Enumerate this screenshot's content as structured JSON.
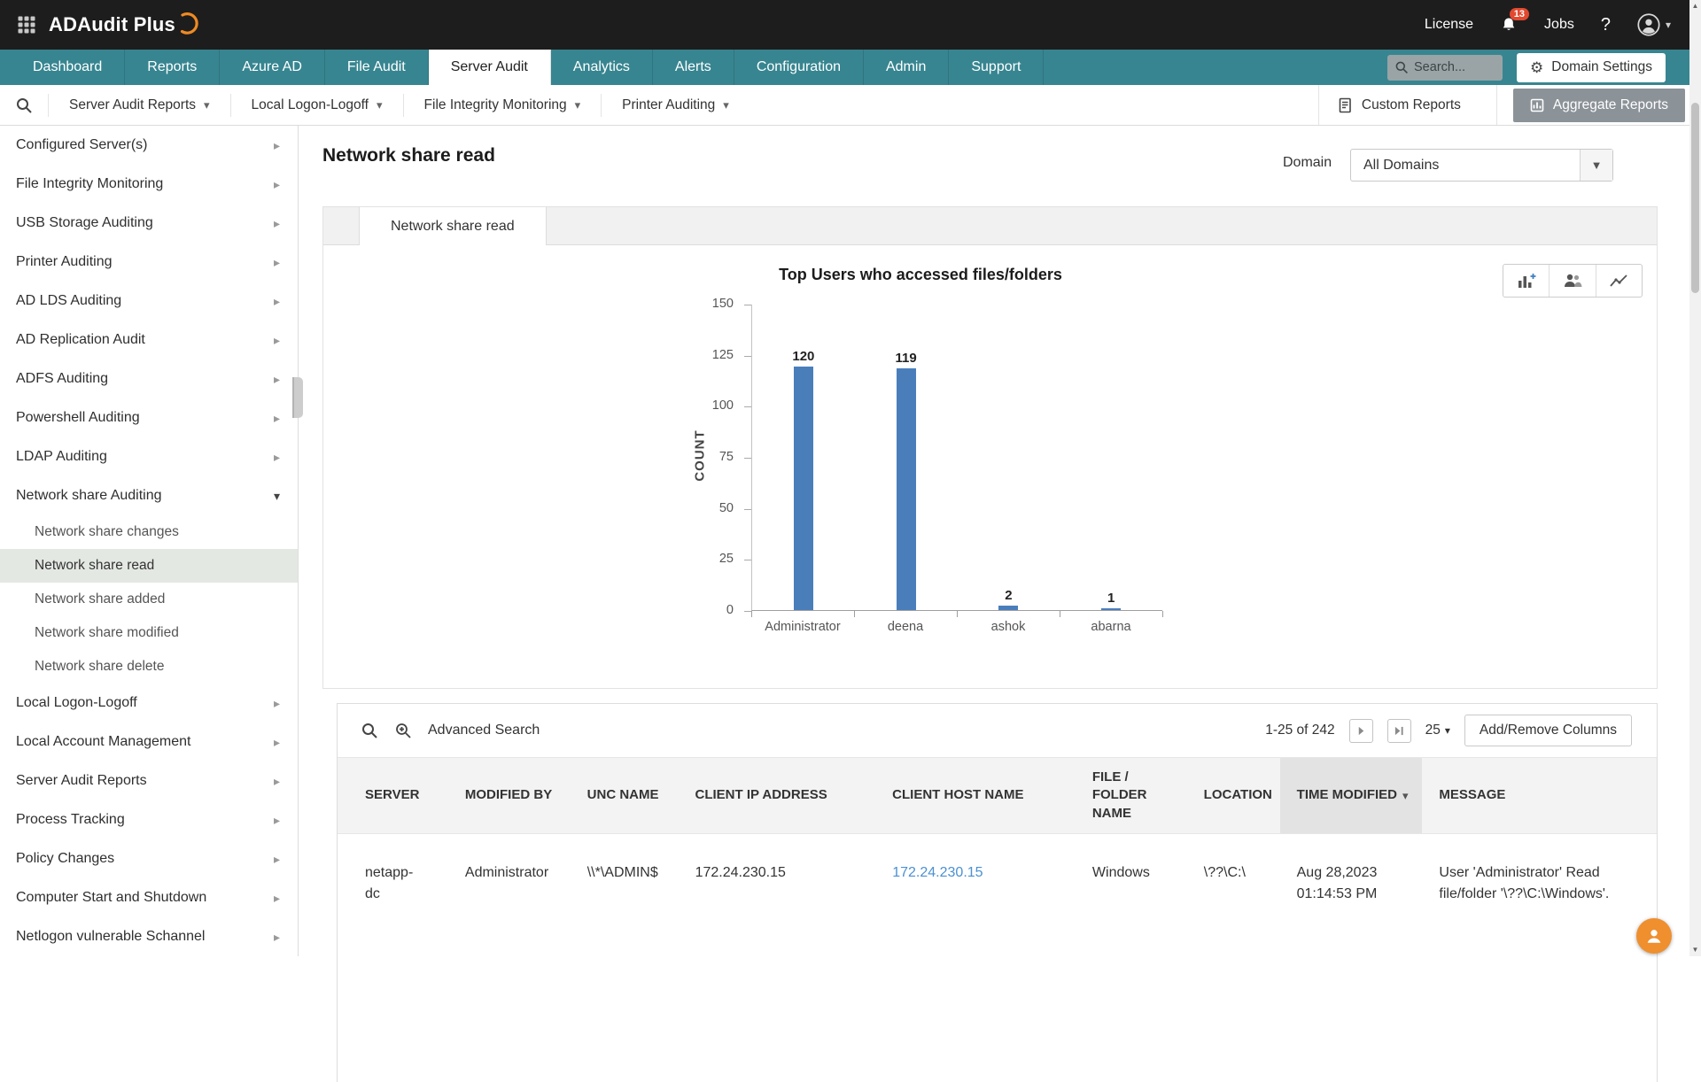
{
  "topbar": {
    "app_name": "ADAudit Plus",
    "license_label": "License",
    "notification_count": "13",
    "jobs_label": "Jobs",
    "help_label": "?"
  },
  "nav": {
    "tabs": [
      {
        "label": "Dashboard",
        "active": false
      },
      {
        "label": "Reports",
        "active": false
      },
      {
        "label": "Azure AD",
        "active": false
      },
      {
        "label": "File Audit",
        "active": false
      },
      {
        "label": "Server Audit",
        "active": true
      },
      {
        "label": "Analytics",
        "active": false
      },
      {
        "label": "Alerts",
        "active": false
      },
      {
        "label": "Configuration",
        "active": false
      },
      {
        "label": "Admin",
        "active": false
      },
      {
        "label": "Support",
        "active": false
      }
    ],
    "search_placeholder": "Search...",
    "domain_settings_label": "Domain Settings"
  },
  "subnav": {
    "dropdowns": [
      {
        "label": "Server Audit Reports"
      },
      {
        "label": "Local Logon-Logoff"
      },
      {
        "label": "File Integrity Monitoring"
      },
      {
        "label": "Printer Auditing"
      }
    ],
    "custom_reports_label": "Custom Reports",
    "aggregate_reports_label": "Aggregate Reports"
  },
  "sidebar": {
    "items": [
      {
        "label": "Configured Server(s)",
        "type": "collapsed"
      },
      {
        "label": "File Integrity Monitoring",
        "type": "collapsed"
      },
      {
        "label": "USB Storage Auditing",
        "type": "collapsed"
      },
      {
        "label": "Printer Auditing",
        "type": "collapsed"
      },
      {
        "label": "AD LDS Auditing",
        "type": "collapsed"
      },
      {
        "label": "AD Replication Audit",
        "type": "collapsed"
      },
      {
        "label": "ADFS Auditing",
        "type": "collapsed"
      },
      {
        "label": "Powershell Auditing",
        "type": "collapsed"
      },
      {
        "label": "LDAP Auditing",
        "type": "collapsed"
      },
      {
        "label": "Network share Auditing",
        "type": "expanded"
      },
      {
        "label": "Network share changes",
        "type": "child"
      },
      {
        "label": "Network share read",
        "type": "child",
        "selected": true
      },
      {
        "label": "Network share added",
        "type": "child"
      },
      {
        "label": "Network share modified",
        "type": "child"
      },
      {
        "label": "Network share delete",
        "type": "child"
      },
      {
        "label": "Local Logon-Logoff",
        "type": "collapsed"
      },
      {
        "label": "Local Account Management",
        "type": "collapsed"
      },
      {
        "label": "Server Audit Reports",
        "type": "collapsed"
      },
      {
        "label": "Process Tracking",
        "type": "collapsed"
      },
      {
        "label": "Policy Changes",
        "type": "collapsed"
      },
      {
        "label": "Computer Start and Shutdown",
        "type": "collapsed"
      },
      {
        "label": "Netlogon vulnerable Schannel",
        "type": "collapsed"
      }
    ]
  },
  "page": {
    "title": "Network share read",
    "domain_label": "Domain",
    "domain_value": "All Domains",
    "active_tab": "Network share read"
  },
  "chart_data": {
    "type": "bar",
    "title": "Top Users who accessed files/folders",
    "ylabel": "COUNT",
    "categories": [
      "Administrator",
      "deena",
      "ashok",
      "abarna"
    ],
    "values": [
      120,
      119,
      2,
      1
    ],
    "yticks": [
      0,
      25,
      50,
      75,
      100,
      125,
      150
    ],
    "ylim": [
      0,
      150
    ],
    "bar_color": "#4a7ebb",
    "grid": false,
    "legend": false
  },
  "table": {
    "advanced_search_label": "Advanced Search",
    "pagination_text": "1-25 of 242",
    "page_size": "25",
    "add_remove_columns_label": "Add/Remove Columns",
    "columns": [
      {
        "label": "SERVER",
        "key": "server"
      },
      {
        "label": "MODIFIED BY",
        "key": "modified_by"
      },
      {
        "label": "UNC NAME",
        "key": "unc_name"
      },
      {
        "label": "CLIENT IP ADDRESS",
        "key": "client_ip"
      },
      {
        "label": "CLIENT HOST NAME",
        "key": "client_host"
      },
      {
        "label": "FILE / FOLDER NAME",
        "key": "file_folder"
      },
      {
        "label": "LOCATION",
        "key": "location"
      },
      {
        "label": "TIME MODIFIED",
        "key": "time_modified",
        "sorted": "desc"
      },
      {
        "label": "MESSAGE",
        "key": "message"
      }
    ],
    "rows": [
      {
        "server": "netapp-dc",
        "modified_by": "Administrator",
        "unc_name": "\\\\*\\ADMIN$",
        "client_ip": "172.24.230.15",
        "client_host": "172.24.230.15",
        "file_folder": "Windows",
        "location": "\\??\\C:\\",
        "time_modified": "Aug 28,2023 01:14:53 PM",
        "message": "User 'Administrator' Read file/folder '\\??\\C:\\Windows'."
      }
    ]
  }
}
